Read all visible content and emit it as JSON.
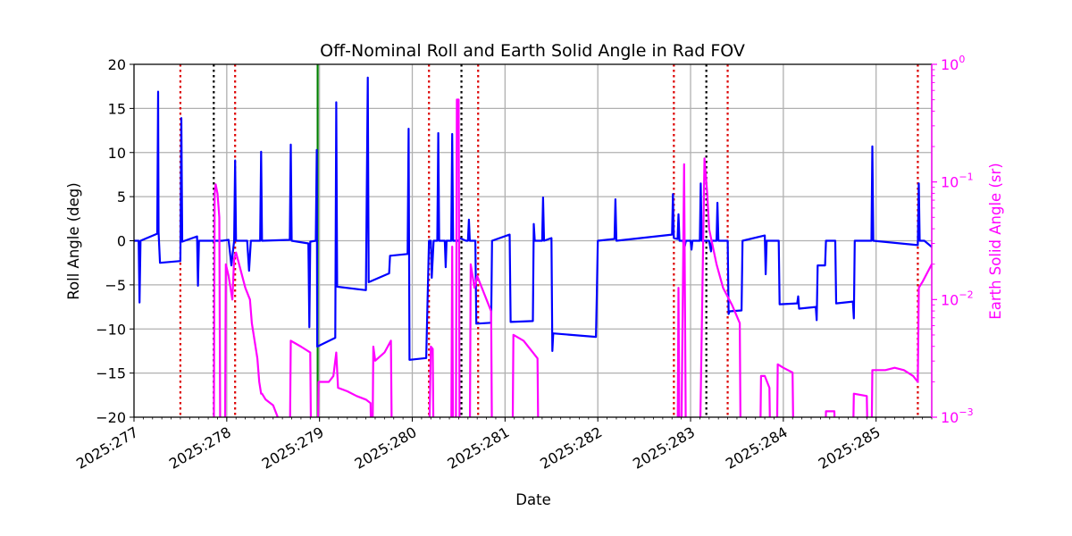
{
  "chart_data": {
    "type": "line",
    "title": "Off-Nominal Roll and Earth Solid Angle in Rad FOV",
    "xlabel": "Date",
    "ylabel_left": "Roll Angle (deg)",
    "ylabel_right": "Earth Solid Angle (sr)",
    "xlim": [
      277.0,
      285.6
    ],
    "ylim_left": [
      -20,
      20
    ],
    "ylim_right_log10": [
      -3,
      0
    ],
    "grid": true,
    "colors": {
      "roll": "#0000ff",
      "solid_angle": "#ff00ff",
      "right_axis": "#ff00ff",
      "red_marker": "#dd0000",
      "black_marker": "#000000",
      "green_marker": "#008000",
      "grid": "#b0b0b0",
      "axes": "#000000"
    },
    "x_ticks": [
      {
        "value": 277,
        "label": "2025:277"
      },
      {
        "value": 278,
        "label": "2025:278"
      },
      {
        "value": 279,
        "label": "2025:279"
      },
      {
        "value": 280,
        "label": "2025:280"
      },
      {
        "value": 281,
        "label": "2025:281"
      },
      {
        "value": 282,
        "label": "2025:282"
      },
      {
        "value": 283,
        "label": "2025:283"
      },
      {
        "value": 284,
        "label": "2025:284"
      },
      {
        "value": 285,
        "label": "2025:285"
      }
    ],
    "y_ticks_left": [
      {
        "value": 20,
        "label": "20"
      },
      {
        "value": 15,
        "label": "15"
      },
      {
        "value": 10,
        "label": "10"
      },
      {
        "value": 5,
        "label": "5"
      },
      {
        "value": 0,
        "label": "0"
      },
      {
        "value": -5,
        "label": "−5"
      },
      {
        "value": -10,
        "label": "−10"
      },
      {
        "value": -15,
        "label": "−15"
      },
      {
        "value": -20,
        "label": "−20"
      }
    ],
    "y_ticks_right": [
      {
        "exp": 0,
        "base": "10",
        "power": "0"
      },
      {
        "exp": -1,
        "base": "10",
        "power": "−1"
      },
      {
        "exp": -2,
        "base": "10",
        "power": "−2"
      },
      {
        "exp": -3,
        "base": "10",
        "power": "−3"
      }
    ],
    "vlines_red": [
      277.5,
      278.09,
      280.18,
      280.71,
      282.82,
      283.4,
      285.45
    ],
    "vlines_black": [
      277.86,
      280.53,
      283.17
    ],
    "vlines_green": [
      278.98
    ],
    "series": [
      {
        "name": "Roll Angle",
        "axis": "left",
        "color": "#0000ff",
        "points": [
          [
            277.0,
            0
          ],
          [
            277.05,
            0
          ],
          [
            277.06,
            -7
          ],
          [
            277.07,
            0
          ],
          [
            277.25,
            0.8
          ],
          [
            277.26,
            16.9
          ],
          [
            277.265,
            1
          ],
          [
            277.28,
            -2.5
          ],
          [
            277.5,
            -2.3
          ],
          [
            277.51,
            13.9
          ],
          [
            277.52,
            -0.1
          ],
          [
            277.68,
            0.5
          ],
          [
            277.69,
            -5.1
          ],
          [
            277.7,
            0
          ],
          [
            277.95,
            0
          ],
          [
            278.02,
            0.1
          ],
          [
            278.05,
            -2.8
          ],
          [
            278.08,
            0
          ],
          [
            278.09,
            9.1
          ],
          [
            278.1,
            0
          ],
          [
            278.22,
            0
          ],
          [
            278.24,
            -3.4
          ],
          [
            278.26,
            0
          ],
          [
            278.36,
            0
          ],
          [
            278.37,
            10.1
          ],
          [
            278.38,
            0
          ],
          [
            278.68,
            0.1
          ],
          [
            278.69,
            10.9
          ],
          [
            278.7,
            0
          ],
          [
            278.88,
            -0.3
          ],
          [
            278.89,
            -9.8
          ],
          [
            278.9,
            -0.1
          ],
          [
            278.96,
            0
          ],
          [
            278.97,
            10.3
          ],
          [
            278.975,
            -12
          ],
          [
            279.17,
            -11
          ],
          [
            279.18,
            15.7
          ],
          [
            279.19,
            -5.2
          ],
          [
            279.5,
            -5.6
          ],
          [
            279.52,
            18.5
          ],
          [
            279.53,
            -4.7
          ],
          [
            279.75,
            -3.7
          ],
          [
            279.76,
            -1.7
          ],
          [
            279.95,
            -1.5
          ],
          [
            279.96,
            12.7
          ],
          [
            279.97,
            -13.5
          ],
          [
            280.15,
            -13.3
          ],
          [
            280.18,
            0
          ],
          [
            280.2,
            0
          ],
          [
            280.21,
            -4.2
          ],
          [
            280.23,
            0
          ],
          [
            280.27,
            0
          ],
          [
            280.28,
            12.2
          ],
          [
            280.29,
            0
          ],
          [
            280.35,
            0
          ],
          [
            280.36,
            -3
          ],
          [
            280.37,
            0
          ],
          [
            280.42,
            0
          ],
          [
            280.43,
            12.1
          ],
          [
            280.44,
            0
          ],
          [
            280.5,
            0
          ],
          [
            280.51,
            0.3
          ],
          [
            280.58,
            0
          ],
          [
            280.6,
            0
          ],
          [
            280.61,
            2.4
          ],
          [
            280.62,
            0
          ],
          [
            280.68,
            0
          ],
          [
            280.69,
            -9.4
          ],
          [
            280.85,
            -9.3
          ],
          [
            280.86,
            0
          ],
          [
            281.05,
            0.7
          ],
          [
            281.06,
            -9.2
          ],
          [
            281.3,
            -9.1
          ],
          [
            281.31,
            1.9
          ],
          [
            281.32,
            0
          ],
          [
            281.4,
            0
          ],
          [
            281.41,
            4.9
          ],
          [
            281.42,
            0
          ],
          [
            281.5,
            0.3
          ],
          [
            281.51,
            -12.5
          ],
          [
            281.52,
            -10.5
          ],
          [
            281.98,
            -10.9
          ],
          [
            281.99,
            -6
          ],
          [
            282.0,
            0
          ],
          [
            282.18,
            0.2
          ],
          [
            282.19,
            4.7
          ],
          [
            282.2,
            0
          ],
          [
            282.8,
            0.7
          ],
          [
            282.81,
            5.3
          ],
          [
            282.82,
            0.3
          ],
          [
            282.86,
            0.2
          ],
          [
            282.87,
            3
          ],
          [
            282.88,
            0
          ],
          [
            282.92,
            0
          ],
          [
            282.93,
            -1
          ],
          [
            282.95,
            0
          ],
          [
            283.0,
            0
          ],
          [
            283.01,
            -1
          ],
          [
            283.02,
            0
          ],
          [
            283.1,
            0
          ],
          [
            283.11,
            6.5
          ],
          [
            283.12,
            0
          ],
          [
            283.2,
            0
          ],
          [
            283.22,
            -1.2
          ],
          [
            283.23,
            0
          ],
          [
            283.28,
            0
          ],
          [
            283.29,
            4.3
          ],
          [
            283.3,
            0
          ],
          [
            283.35,
            0
          ],
          [
            283.4,
            0
          ],
          [
            283.41,
            -8.3
          ],
          [
            283.42,
            -8.0
          ],
          [
            283.55,
            -7.9
          ],
          [
            283.56,
            0
          ],
          [
            283.8,
            0.6
          ],
          [
            283.81,
            -3.8
          ],
          [
            283.82,
            0
          ],
          [
            283.95,
            0
          ],
          [
            283.96,
            -7.2
          ],
          [
            284.15,
            -7.1
          ],
          [
            284.16,
            -6.3
          ],
          [
            284.17,
            -7.7
          ],
          [
            284.35,
            -7.5
          ],
          [
            284.36,
            -9
          ],
          [
            284.37,
            -2.8
          ],
          [
            284.45,
            -2.8
          ],
          [
            284.46,
            0
          ],
          [
            284.56,
            0
          ],
          [
            284.57,
            -7.1
          ],
          [
            284.75,
            -6.9
          ],
          [
            284.76,
            -8.8
          ],
          [
            284.77,
            0
          ],
          [
            284.95,
            0
          ],
          [
            284.96,
            10.7
          ],
          [
            284.97,
            0
          ],
          [
            285.45,
            -0.5
          ],
          [
            285.46,
            6.5
          ],
          [
            285.47,
            0
          ],
          [
            285.52,
            0
          ],
          [
            285.6,
            -0.7
          ]
        ]
      },
      {
        "name": "Earth Solid Angle",
        "axis": "right",
        "color": "#ff00ff",
        "log10_points": [
          [
            277.86,
            -3.3
          ],
          [
            277.87,
            -1.1
          ],
          [
            277.88,
            -1.02
          ],
          [
            277.9,
            -1.1
          ],
          [
            277.92,
            -1.3
          ],
          [
            277.93,
            -3.3
          ],
          [
            277.98,
            -3.3
          ],
          [
            277.99,
            -1.7
          ],
          [
            278.02,
            -1.8
          ],
          [
            278.06,
            -2.0
          ],
          [
            278.08,
            -1.65
          ],
          [
            278.1,
            -1.6
          ],
          [
            278.2,
            -1.9
          ],
          [
            278.25,
            -2.0
          ],
          [
            278.27,
            -2.2
          ],
          [
            278.3,
            -2.35
          ],
          [
            278.33,
            -2.5
          ],
          [
            278.35,
            -2.7
          ],
          [
            278.37,
            -2.8
          ],
          [
            278.38,
            -2.8
          ],
          [
            278.42,
            -2.85
          ],
          [
            278.5,
            -2.9
          ],
          [
            278.55,
            -3.0
          ],
          [
            278.6,
            -3.3
          ],
          [
            278.68,
            -3.3
          ],
          [
            278.69,
            -2.35
          ],
          [
            278.8,
            -2.4
          ],
          [
            278.9,
            -2.45
          ],
          [
            278.91,
            -3.3
          ],
          [
            278.98,
            -3.3
          ],
          [
            278.99,
            -2.7
          ],
          [
            279.1,
            -2.7
          ],
          [
            279.15,
            -2.65
          ],
          [
            279.18,
            -2.45
          ],
          [
            279.2,
            -2.75
          ],
          [
            279.3,
            -2.78
          ],
          [
            279.4,
            -2.82
          ],
          [
            279.5,
            -2.85
          ],
          [
            279.55,
            -2.88
          ],
          [
            279.56,
            -3.3
          ],
          [
            279.57,
            -3.3
          ],
          [
            279.58,
            -2.4
          ],
          [
            279.6,
            -2.52
          ],
          [
            279.7,
            -2.45
          ],
          [
            279.77,
            -2.35
          ],
          [
            279.78,
            -3.3
          ],
          [
            280.18,
            -3.3
          ],
          [
            280.2,
            -2.4
          ],
          [
            280.22,
            -2.42
          ],
          [
            280.23,
            -3.3
          ],
          [
            280.42,
            -3.3
          ],
          [
            280.43,
            -1.55
          ],
          [
            280.44,
            -3.3
          ],
          [
            280.47,
            -3.3
          ],
          [
            280.48,
            -0.3
          ],
          [
            280.5,
            -0.3
          ],
          [
            280.51,
            -3.3
          ],
          [
            280.62,
            -3.3
          ],
          [
            280.63,
            -1.7
          ],
          [
            280.67,
            -1.9
          ],
          [
            280.7,
            -1.8
          ],
          [
            280.8,
            -2.0
          ],
          [
            280.85,
            -2.1
          ],
          [
            280.86,
            -3.3
          ],
          [
            281.08,
            -3.3
          ],
          [
            281.09,
            -2.3
          ],
          [
            281.2,
            -2.35
          ],
          [
            281.3,
            -2.45
          ],
          [
            281.35,
            -2.5
          ],
          [
            281.36,
            -3.3
          ],
          [
            282.86,
            -3.3
          ],
          [
            282.87,
            -1.9
          ],
          [
            282.88,
            -3.3
          ],
          [
            282.9,
            -3.3
          ],
          [
            282.93,
            -0.85
          ],
          [
            282.95,
            -3.3
          ],
          [
            283.1,
            -3.3
          ],
          [
            283.15,
            -0.8
          ],
          [
            283.18,
            -1.1
          ],
          [
            283.2,
            -1.4
          ],
          [
            283.28,
            -1.7
          ],
          [
            283.35,
            -1.9
          ],
          [
            283.45,
            -2.05
          ],
          [
            283.53,
            -2.2
          ],
          [
            283.54,
            -3.3
          ],
          [
            283.75,
            -3.3
          ],
          [
            283.76,
            -2.65
          ],
          [
            283.8,
            -2.65
          ],
          [
            283.85,
            -2.75
          ],
          [
            283.86,
            -3.3
          ],
          [
            283.93,
            -3.3
          ],
          [
            283.94,
            -2.55
          ],
          [
            284.0,
            -2.58
          ],
          [
            284.1,
            -2.62
          ],
          [
            284.11,
            -3.3
          ],
          [
            284.45,
            -3.3
          ],
          [
            284.46,
            -2.95
          ],
          [
            284.55,
            -2.95
          ],
          [
            284.56,
            -3.3
          ],
          [
            284.75,
            -3.3
          ],
          [
            284.76,
            -2.8
          ],
          [
            284.9,
            -2.82
          ],
          [
            284.91,
            -3.3
          ],
          [
            284.95,
            -3.3
          ],
          [
            284.96,
            -2.6
          ],
          [
            285.1,
            -2.6
          ],
          [
            285.2,
            -2.58
          ],
          [
            285.3,
            -2.6
          ],
          [
            285.4,
            -2.65
          ],
          [
            285.45,
            -2.7
          ],
          [
            285.46,
            -1.9
          ],
          [
            285.5,
            -1.85
          ],
          [
            285.6,
            -1.7
          ]
        ]
      }
    ]
  }
}
